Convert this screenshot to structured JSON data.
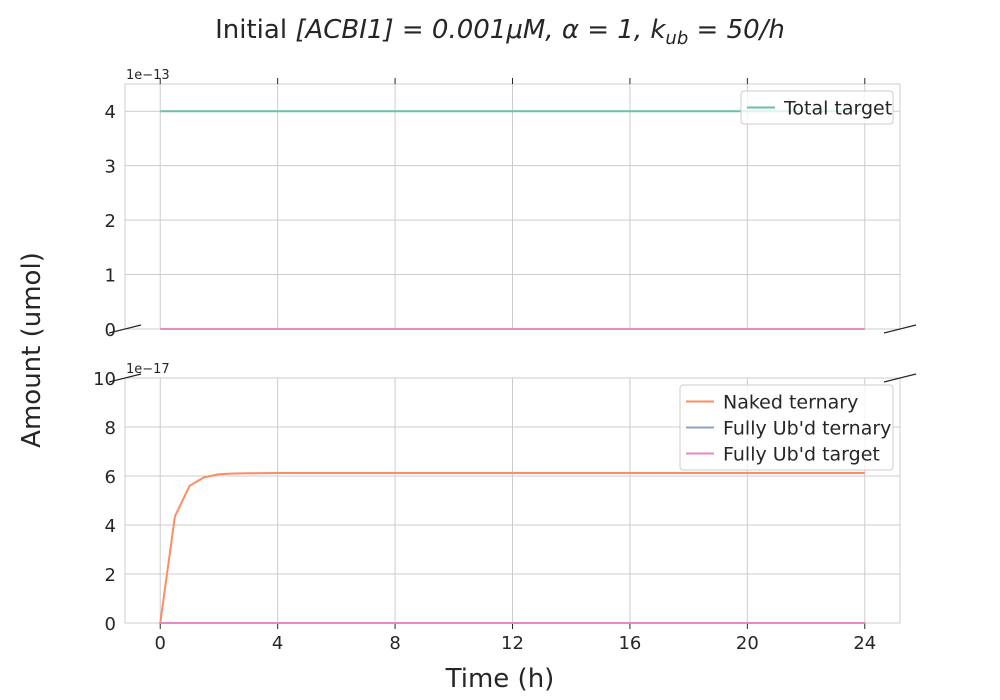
{
  "chart_data": {
    "type": "line",
    "title": {
      "prefix": "Initial ",
      "math_main": "[ACBI1] = 0.001μM, α = 1, k",
      "math_sub": "ub",
      "math_tail": " = 50/h"
    },
    "xlabel": "Time (h)",
    "ylabel": "Amount (umol)",
    "x": [
      0,
      0.5,
      1,
      1.5,
      2,
      2.5,
      3,
      4,
      6,
      8,
      10,
      12,
      14,
      16,
      18,
      20,
      22,
      24
    ],
    "xlim": [
      -1.2,
      25.2
    ],
    "xticks": [
      0,
      4,
      8,
      12,
      16,
      20,
      24
    ],
    "xtick_labels": [
      "0",
      "4",
      "8",
      "12",
      "16",
      "20",
      "24"
    ],
    "grid": true,
    "broken_axis": true,
    "panels": [
      {
        "position": "top",
        "offset_label": "1e−13",
        "ylim": [
          0,
          4.5
        ],
        "yticks": [
          0,
          1,
          2,
          3,
          4
        ],
        "ytick_labels": [
          "0",
          "1",
          "2",
          "3",
          "4"
        ],
        "legend_location": "top-right",
        "legend": [
          "Total target"
        ],
        "series": [
          {
            "name": "Total target",
            "color": "#66c2a5",
            "legend": true,
            "values": [
              4,
              4,
              4,
              4,
              4,
              4,
              4,
              4,
              4,
              4,
              4,
              4,
              4,
              4,
              4,
              4,
              4,
              4
            ]
          },
          {
            "color": "#e78ac3",
            "legend": false,
            "values": [
              0,
              0,
              0,
              0,
              0,
              0,
              0,
              0,
              0,
              0,
              0,
              0,
              0,
              0,
              0,
              0,
              0,
              0
            ]
          }
        ]
      },
      {
        "position": "bottom",
        "offset_label": "1e−17",
        "ylim": [
          0,
          10
        ],
        "yticks": [
          0,
          2,
          4,
          6,
          8,
          10
        ],
        "ytick_labels": [
          "0",
          "2",
          "4",
          "6",
          "8",
          "10"
        ],
        "legend_location": "top-right",
        "legend": [
          "Naked ternary",
          "Fully Ub'd ternary",
          "Fully Ub'd target"
        ],
        "series": [
          {
            "name": "Naked ternary",
            "color": "#fc8d62",
            "legend": true,
            "values": [
              0,
              4.35,
              5.6,
              5.95,
              6.07,
              6.1,
              6.11,
              6.12,
              6.12,
              6.12,
              6.12,
              6.12,
              6.12,
              6.12,
              6.12,
              6.12,
              6.12,
              6.12
            ]
          },
          {
            "name": "Fully Ub'd ternary",
            "color": "#8da0cb",
            "legend": true,
            "values": [
              0,
              0,
              0,
              0,
              0,
              0,
              0,
              0,
              0,
              0,
              0,
              0,
              0,
              0,
              0,
              0,
              0,
              0
            ]
          },
          {
            "name": "Fully Ub'd target",
            "color": "#e78ac3",
            "legend": true,
            "values": [
              0,
              0,
              0,
              0,
              0,
              0,
              0,
              0,
              0,
              0,
              0,
              0,
              0,
              0,
              0,
              0,
              0,
              0
            ]
          }
        ]
      }
    ]
  }
}
